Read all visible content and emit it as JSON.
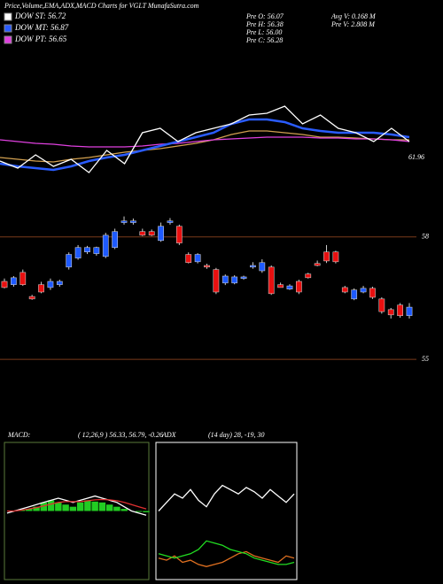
{
  "header": {
    "title": "Price,Volume,EMA,ADX,MACD Charts for VGLT MunafaSutra.com",
    "legend": [
      {
        "label": "DOW ST: 56.72",
        "color": "#ffffff"
      },
      {
        "label": "DOW MT: 56.87",
        "color": "#2a5cff"
      },
      {
        "label": "DOW PT: 56.65",
        "color": "#e040e0"
      }
    ],
    "stats": [
      "Pre O: 56.07",
      "Avg V: 0.168 M",
      "Pre H: 56.38",
      "Pre V: 2.808 M",
      "Pre L: 56.00",
      "Pre C: 56.28"
    ]
  },
  "chart_data": [
    {
      "type": "line",
      "ylim": [
        59.4,
        71.4
      ],
      "yticks": [
        61.96
      ],
      "series": [
        {
          "color": "#d2a050",
          "values": [
            61.96,
            61.8,
            61.64,
            61.56,
            61.8,
            61.96,
            62.2,
            62.44,
            62.6,
            62.76,
            63.0,
            63.24,
            63.56,
            64.04,
            64.36,
            64.36,
            64.2,
            64.04,
            63.8,
            63.8,
            63.72,
            63.64,
            63.56,
            63.56
          ]
        },
        {
          "color": "#e040e0",
          "values": [
            63.56,
            63.4,
            63.24,
            63.16,
            63.0,
            62.92,
            62.92,
            62.92,
            63.0,
            63.16,
            63.24,
            63.4,
            63.56,
            63.64,
            63.72,
            63.8,
            63.8,
            63.8,
            63.72,
            63.72,
            63.64,
            63.64,
            63.56,
            63.4
          ]
        },
        {
          "color": "#2a5cff",
          "values": [
            61.4,
            61.16,
            61.0,
            60.84,
            61.16,
            61.64,
            61.96,
            62.2,
            62.6,
            63.0,
            63.4,
            63.8,
            64.2,
            65.0,
            65.4,
            65.4,
            65.16,
            64.6,
            64.36,
            64.2,
            64.2,
            64.2,
            64.04,
            63.8
          ]
        },
        {
          "color": "#ffffff",
          "values": [
            61.64,
            61.0,
            62.2,
            61.16,
            61.8,
            60.6,
            62.6,
            61.4,
            64.2,
            64.6,
            63.4,
            64.2,
            64.6,
            65.0,
            65.8,
            65.96,
            66.6,
            65.0,
            65.8,
            64.6,
            64.2,
            63.4,
            64.6,
            63.4
          ]
        }
      ]
    },
    {
      "type": "candlestick",
      "ylim": [
        54.7,
        58.6
      ],
      "yticks": [
        58,
        55
      ],
      "grid": true,
      "grid_color": "#7a3a1a",
      "up_color": "#1e5aff",
      "down_color": "#e81010",
      "open": [
        56.91,
        56.83,
        57.13,
        56.54,
        56.83,
        56.76,
        56.83,
        57.26,
        57.48,
        57.63,
        57.59,
        57.52,
        57.74,
        58.35,
        58.35,
        58.13,
        58.13,
        57.91,
        58.35,
        58.26,
        57.57,
        57.39,
        57.3,
        57.2,
        56.87,
        56.87,
        56.98,
        57.26,
        57.17,
        57.26,
        56.83,
        56.72,
        56.91,
        57.09,
        57.35,
        57.63,
        57.63,
        56.76,
        56.48,
        56.65,
        56.74,
        56.48,
        56.22,
        56.33,
        56.07
      ],
      "high": [
        56.98,
        57.04,
        57.2,
        56.58,
        56.9,
        56.98,
        56.95,
        57.62,
        57.8,
        57.78,
        57.76,
        58.1,
        58.2,
        58.5,
        58.45,
        58.2,
        58.18,
        58.35,
        58.46,
        58.3,
        57.62,
        57.6,
        57.34,
        57.24,
        57.08,
        57.06,
        57.05,
        57.38,
        57.45,
        57.3,
        56.88,
        56.84,
        56.95,
        57.12,
        57.42,
        57.8,
        57.66,
        56.8,
        56.74,
        56.8,
        56.78,
        56.52,
        56.26,
        56.38,
        56.38
      ],
      "low": [
        56.74,
        56.78,
        56.8,
        56.46,
        56.62,
        56.7,
        56.78,
        57.2,
        57.44,
        57.58,
        57.54,
        57.48,
        57.7,
        58.3,
        58.3,
        58.02,
        58.02,
        57.88,
        58.3,
        57.8,
        57.35,
        57.35,
        57.22,
        56.6,
        56.82,
        56.84,
        56.95,
        57.22,
        57.12,
        56.58,
        56.76,
        56.7,
        56.6,
        56.98,
        57.28,
        57.36,
        57.35,
        56.62,
        56.45,
        56.62,
        56.48,
        56.12,
        56.0,
        56.02,
        56.0
      ],
      "close": [
        56.76,
        57.0,
        56.83,
        56.48,
        56.65,
        56.91,
        56.91,
        57.57,
        57.74,
        57.74,
        57.74,
        58.04,
        58.13,
        58.39,
        58.39,
        58.04,
        58.04,
        58.26,
        58.39,
        57.85,
        57.37,
        57.57,
        57.26,
        56.65,
        57.04,
        57.02,
        57.02,
        57.3,
        57.37,
        56.61,
        56.76,
        56.8,
        56.65,
        57.0,
        57.3,
        57.41,
        57.39,
        56.65,
        56.7,
        56.74,
        56.52,
        56.17,
        56.09,
        56.07,
        56.28
      ]
    },
    {
      "type": "macd",
      "title": "MACD:",
      "subtitle": "( 12,26,9 ) 56.33, 56.79, -0.26",
      "ylim": [
        -1.5,
        1.5
      ],
      "histogram_color": "#22cc22",
      "histogram": [
        0,
        0,
        0.02,
        0.05,
        0.1,
        0.2,
        0.25,
        0.2,
        0.15,
        0.1,
        0.2,
        0.25,
        0.22,
        0.2,
        0.15,
        0.1,
        0.05,
        0,
        -0.02,
        -0.03
      ],
      "series": [
        {
          "color": "#ffffff",
          "values": [
            -0.05,
            0,
            0.05,
            0.1,
            0.15,
            0.2,
            0.25,
            0.3,
            0.25,
            0.2,
            0.25,
            0.3,
            0.35,
            0.3,
            0.25,
            0.2,
            0.1,
            0,
            -0.05,
            -0.1
          ]
        },
        {
          "color": "#e03030",
          "values": [
            0,
            0,
            0.02,
            0.05,
            0.08,
            0.12,
            0.16,
            0.2,
            0.22,
            0.22,
            0.22,
            0.24,
            0.26,
            0.27,
            0.26,
            0.24,
            0.2,
            0.15,
            0.1,
            0.05
          ]
        }
      ]
    },
    {
      "type": "line",
      "title": "ADX",
      "subtitle": "(14 day) 28, -19, 30",
      "ylim": [
        0,
        60
      ],
      "series": [
        {
          "color": "#ffffff",
          "values": [
            30,
            34,
            38,
            36,
            40,
            35,
            32,
            38,
            42,
            40,
            38,
            41,
            39,
            36,
            40,
            37,
            34,
            38
          ]
        },
        {
          "color": "#e07020",
          "values": [
            8,
            7,
            9,
            6,
            7,
            5,
            4,
            5,
            6,
            8,
            10,
            11,
            9,
            8,
            7,
            6,
            9,
            8
          ]
        },
        {
          "color": "#22dd22",
          "values": [
            10,
            9,
            8,
            9,
            10,
            12,
            16,
            15,
            14,
            12,
            11,
            10,
            8,
            7,
            6,
            5,
            5,
            6
          ]
        }
      ]
    }
  ]
}
